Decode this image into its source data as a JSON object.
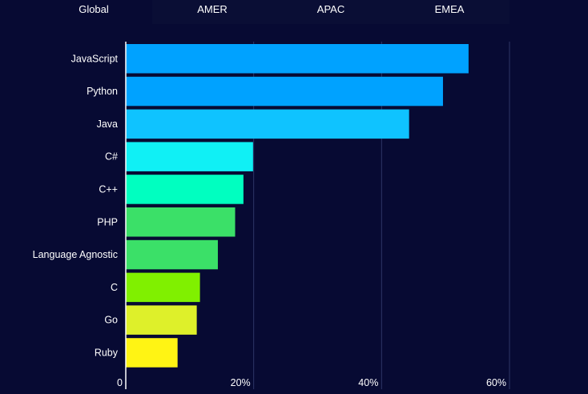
{
  "tabs": [
    {
      "label": "Global"
    },
    {
      "label": "AMER"
    },
    {
      "label": "APAC"
    },
    {
      "label": "EMEA"
    }
  ],
  "chart_data": {
    "type": "bar",
    "orientation": "horizontal",
    "categories": [
      "JavaScript",
      "Python",
      "Java",
      "C#",
      "C++",
      "PHP",
      "Language Agnostic",
      "C",
      "Go",
      "Ruby"
    ],
    "values": [
      53.6,
      49.6,
      44.3,
      19.9,
      18.4,
      17.1,
      14.4,
      11.6,
      11.1,
      8.1
    ],
    "colors": [
      "#00a2ff",
      "#00a2ff",
      "#0fc3ff",
      "#10f0f5",
      "#00ffc0",
      "#3be068",
      "#3be068",
      "#80f000",
      "#def02a",
      "#fff414"
    ],
    "xlim": [
      0,
      60
    ],
    "xticks": [
      "0",
      "20%",
      "40%",
      "60%"
    ],
    "xtick_values": [
      0,
      20,
      40,
      60
    ],
    "grid": true,
    "legend": "none"
  }
}
